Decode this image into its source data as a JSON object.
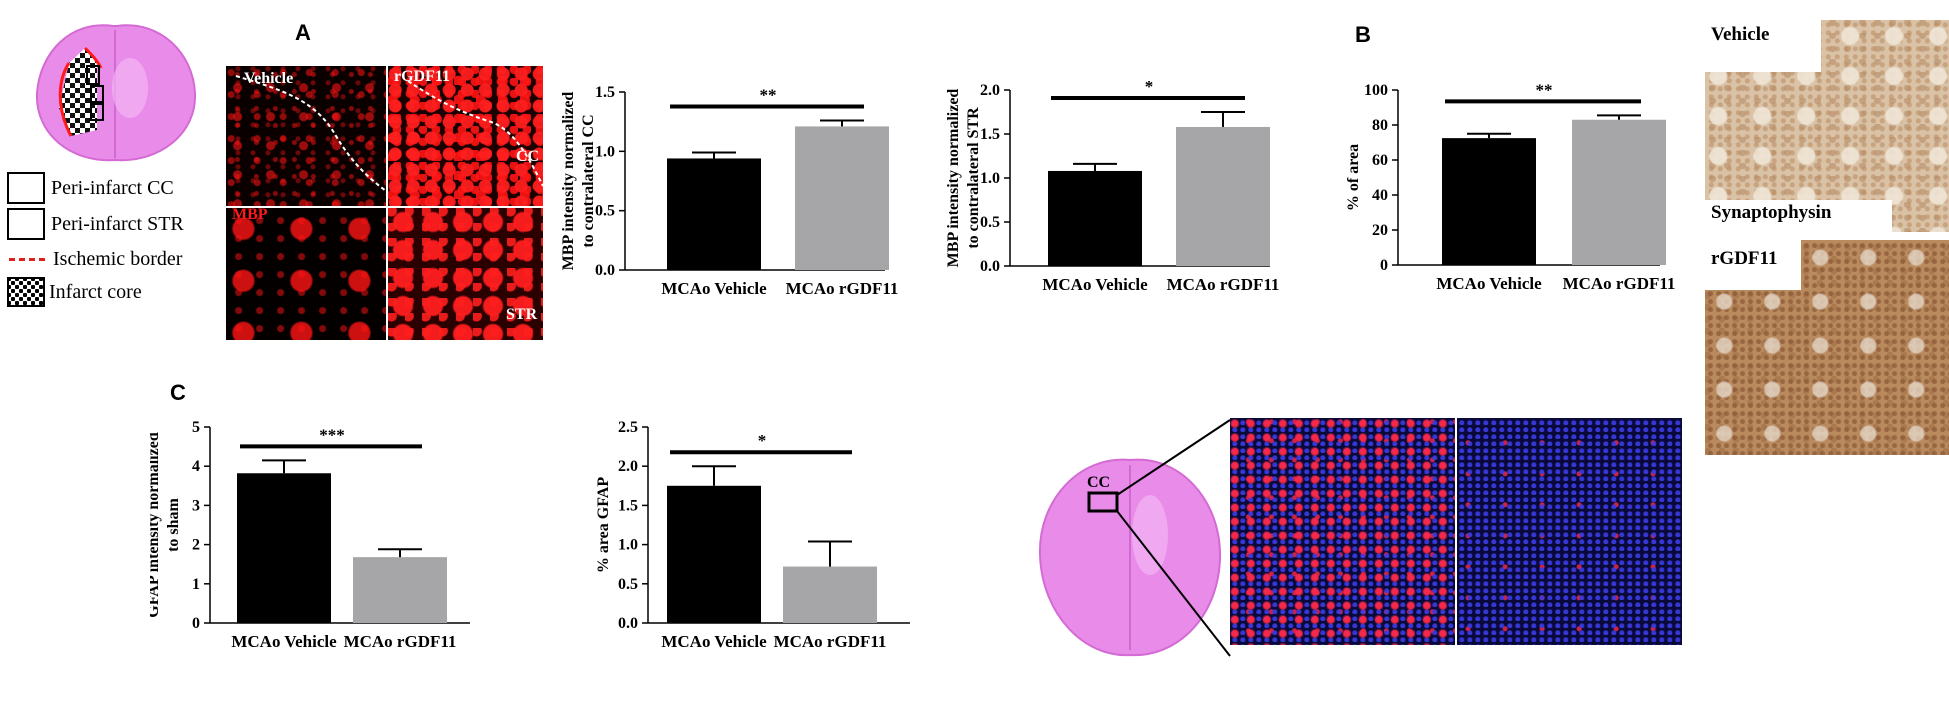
{
  "panels": {
    "a": "A",
    "b": "B",
    "c": "C"
  },
  "legend": {
    "peri_cc": "Peri-infarct CC",
    "peri_str": "Peri-infarct STR",
    "ischemic_border": "Ischemic border",
    "infarct_core": "Infarct core"
  },
  "micro_labels": {
    "vehicle": "Vehicle",
    "rgdf11": "rGDF11",
    "mbp": "MBP",
    "cc": "CC",
    "str": "STR"
  },
  "ihc_labels": {
    "vehicle": "Vehicle",
    "synaptophysin": "Synaptophysin",
    "rgdf11": "rGDF11"
  },
  "brain_c_label": "CC",
  "colors": {
    "vehicle_bar": "#000000",
    "rgdf11_bar": "#a6a6a8",
    "mbp_red": "#ff1a1a",
    "gfap_red": "#ff2a4a",
    "dapi_blue": "#2b2bd0",
    "he_pink": "#e070e0",
    "ihc_brown": "#b98a5e"
  },
  "chart_data": [
    {
      "type": "bar",
      "categories": [
        "MCAo Vehicle",
        "MCAo rGDF11"
      ],
      "values": [
        0.94,
        1.21
      ],
      "errors": [
        0.05,
        0.05
      ],
      "ylabel": "MBP intensity normalized to contralateral CC",
      "ylim": [
        0,
        1.5
      ],
      "yticks": [
        "0.0",
        "0.5",
        "1.0",
        "1.5"
      ],
      "significance": "**"
    },
    {
      "type": "bar",
      "categories": [
        "MCAo Vehicle",
        "MCAo rGDF11"
      ],
      "values": [
        1.08,
        1.58
      ],
      "errors": [
        0.08,
        0.17
      ],
      "ylabel": "MBP intensity normalized to contralateral STR",
      "ylim": [
        0,
        2.0
      ],
      "yticks": [
        "0.0",
        "0.5",
        "1.0",
        "1.5",
        "2.0"
      ],
      "significance": "*"
    },
    {
      "type": "bar",
      "categories": [
        "MCAo Vehicle",
        "MCAo rGDF11"
      ],
      "values": [
        72.5,
        83
      ],
      "errors": [
        2.5,
        2.5
      ],
      "ylabel": "% of area",
      "ylim": [
        0,
        100
      ],
      "yticks": [
        "0",
        "20",
        "40",
        "60",
        "80",
        "100"
      ],
      "significance": "**"
    },
    {
      "type": "bar",
      "categories": [
        "MCAo Vehicle",
        "MCAo rGDF11"
      ],
      "values": [
        3.82,
        1.68
      ],
      "errors": [
        0.33,
        0.2
      ],
      "ylabel": "GFAP intensity normalized to sham",
      "ylim": [
        0,
        5
      ],
      "yticks": [
        "0",
        "1",
        "2",
        "3",
        "4",
        "5"
      ],
      "significance": "***"
    },
    {
      "type": "bar",
      "categories": [
        "MCAo Vehicle",
        "MCAo rGDF11"
      ],
      "values": [
        1.75,
        0.72
      ],
      "errors": [
        0.25,
        0.32
      ],
      "ylabel": "% area GFAP",
      "ylim": [
        0,
        2.5
      ],
      "yticks": [
        "0.0",
        "0.5",
        "1.0",
        "1.5",
        "2.0",
        "2.5"
      ],
      "significance": "*"
    }
  ]
}
